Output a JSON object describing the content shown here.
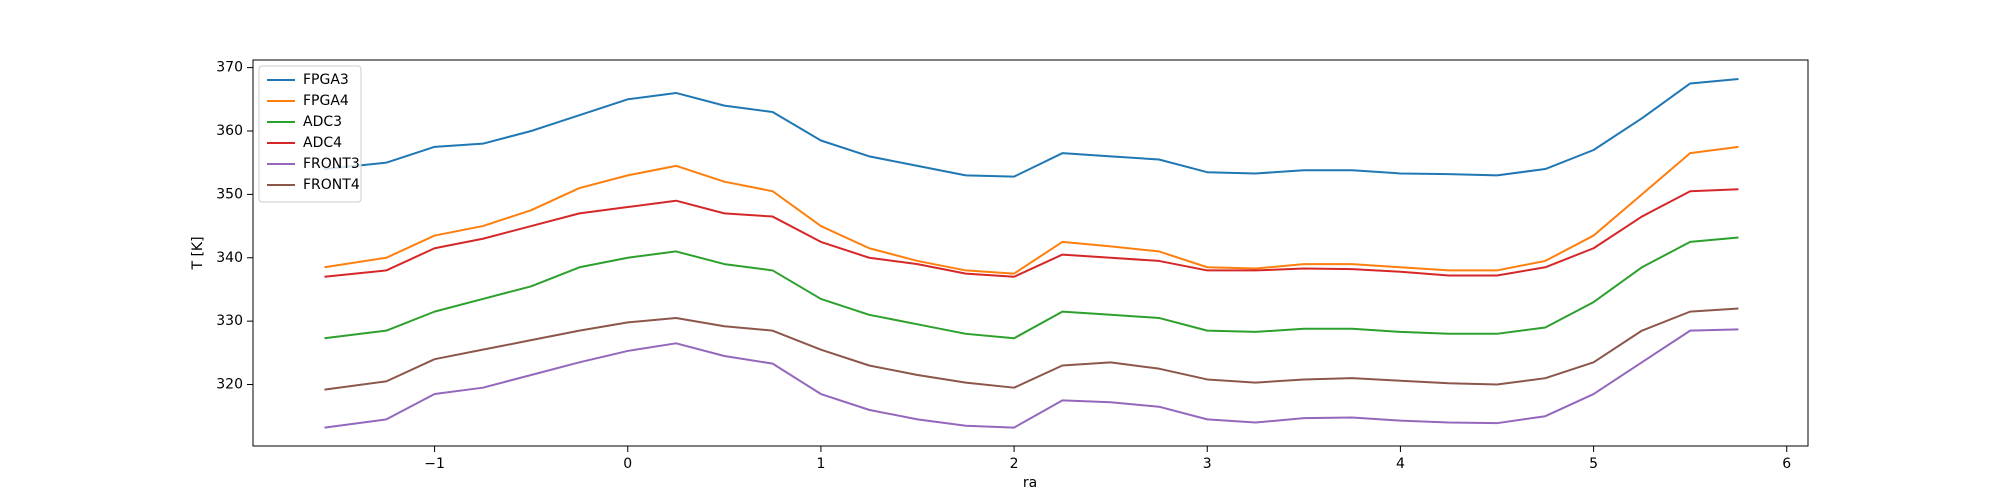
{
  "chart_data": {
    "type": "line",
    "xlabel": "ra",
    "ylabel": "T [K]",
    "x": [
      -1.57,
      -1.25,
      -1.0,
      -0.75,
      -0.5,
      -0.25,
      0,
      0.25,
      0.5,
      0.75,
      1.0,
      1.25,
      1.5,
      1.75,
      2.0,
      2.25,
      2.5,
      2.75,
      3.0,
      3.25,
      3.5,
      3.75,
      4.0,
      4.25,
      4.5,
      4.75,
      5.0,
      5.25,
      5.5,
      5.75
    ],
    "series": [
      {
        "name": "FPGA3",
        "color": "#1f77b4",
        "values": [
          354,
          355,
          357.5,
          358,
          360,
          362.5,
          365,
          366,
          364,
          363,
          358.5,
          356,
          354.5,
          353,
          352.8,
          356.5,
          356,
          355.5,
          353.5,
          353.3,
          353.8,
          353.8,
          353.3,
          353.2,
          353,
          354,
          357,
          362,
          367.5,
          368.2
        ]
      },
      {
        "name": "FPGA4",
        "color": "#ff7f0e",
        "values": [
          338.5,
          340,
          343.5,
          345,
          347.5,
          351,
          353,
          354.5,
          352,
          350.5,
          345,
          341.5,
          339.5,
          338,
          337.5,
          342.5,
          341.8,
          341,
          338.5,
          338.3,
          339,
          339,
          338.5,
          338,
          338,
          339.5,
          343.5,
          350,
          356.5,
          357.5
        ]
      },
      {
        "name": "ADC3",
        "color": "#2ca02c",
        "values": [
          327.3,
          328.5,
          331.5,
          333.5,
          335.5,
          338.5,
          340,
          341,
          339,
          338,
          333.5,
          331,
          329.5,
          328,
          327.3,
          331.5,
          331,
          330.5,
          328.5,
          328.3,
          328.8,
          328.8,
          328.3,
          328,
          328,
          329,
          333,
          338.5,
          342.5,
          343.2
        ]
      },
      {
        "name": "ADC4",
        "color": "#d62728",
        "values": [
          337,
          338,
          341.5,
          343,
          345,
          347,
          348,
          349,
          347,
          346.5,
          342.5,
          340,
          339,
          337.5,
          337,
          340.5,
          340,
          339.5,
          338,
          338,
          338.3,
          338.2,
          337.8,
          337.2,
          337.2,
          338.5,
          341.5,
          346.5,
          350.5,
          350.8
        ]
      },
      {
        "name": "FRONT3",
        "color": "#9467bd",
        "values": [
          313.2,
          314.5,
          318.5,
          319.5,
          321.5,
          323.5,
          325.3,
          326.5,
          324.5,
          323.3,
          318.5,
          316,
          314.5,
          313.5,
          313.2,
          317.5,
          317.2,
          316.5,
          314.5,
          314,
          314.7,
          314.8,
          314.3,
          314,
          313.9,
          315,
          318.5,
          323.5,
          328.5,
          328.7
        ]
      },
      {
        "name": "FRONT4",
        "color": "#8c564b",
        "values": [
          319.2,
          320.5,
          324,
          325.5,
          327,
          328.5,
          329.8,
          330.5,
          329.2,
          328.5,
          325.5,
          323,
          321.5,
          320.3,
          319.5,
          323,
          323.5,
          322.5,
          320.8,
          320.3,
          320.8,
          321,
          320.6,
          320.2,
          320,
          321,
          323.5,
          328.5,
          331.5,
          332
        ]
      }
    ],
    "xlim": [
      -1.94,
      6.11
    ],
    "xticks": [
      {
        "value": -1,
        "label": "−1"
      },
      0,
      1,
      2,
      3,
      4,
      5,
      6
    ],
    "ylim": [
      310.3,
      371.2
    ],
    "yticks": [
      320,
      330,
      340,
      350,
      360,
      370
    ],
    "legend": "upper left"
  }
}
